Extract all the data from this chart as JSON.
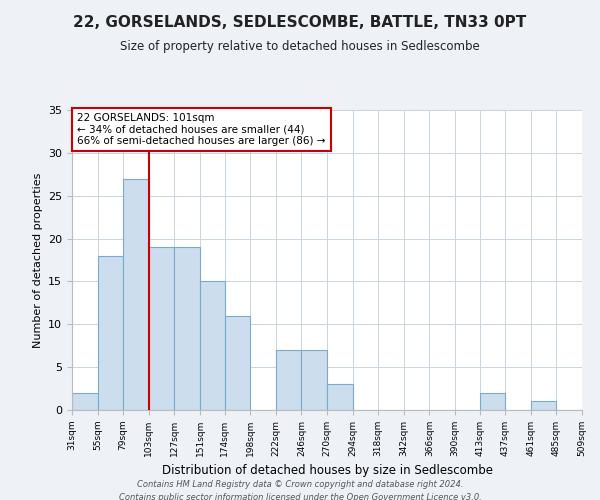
{
  "title": "22, GORSELANDS, SEDLESCOMBE, BATTLE, TN33 0PT",
  "subtitle": "Size of property relative to detached houses in Sedlescombe",
  "xlabel": "Distribution of detached houses by size in Sedlescombe",
  "ylabel": "Number of detached properties",
  "bar_edges": [
    31,
    55,
    79,
    103,
    127,
    151,
    174,
    198,
    222,
    246,
    270,
    294,
    318,
    342,
    366,
    390,
    413,
    437,
    461,
    485,
    509
  ],
  "bar_heights": [
    2,
    18,
    27,
    19,
    19,
    15,
    11,
    0,
    7,
    7,
    3,
    0,
    0,
    0,
    0,
    0,
    2,
    0,
    1,
    0
  ],
  "bar_color": "#ccdded",
  "bar_edgecolor": "#7aaacc",
  "vline_x": 103,
  "vline_color": "#cc0000",
  "annotation_title": "22 GORSELANDS: 101sqm",
  "annotation_line1": "← 34% of detached houses are smaller (44)",
  "annotation_line2": "66% of semi-detached houses are larger (86) →",
  "annotation_box_facecolor": "#ffffff",
  "annotation_box_edgecolor": "#cc0000",
  "ylim": [
    0,
    35
  ],
  "yticks": [
    0,
    5,
    10,
    15,
    20,
    25,
    30,
    35
  ],
  "tick_labels": [
    "31sqm",
    "55sqm",
    "79sqm",
    "103sqm",
    "127sqm",
    "151sqm",
    "174sqm",
    "198sqm",
    "222sqm",
    "246sqm",
    "270sqm",
    "294sqm",
    "318sqm",
    "342sqm",
    "366sqm",
    "390sqm",
    "413sqm",
    "437sqm",
    "461sqm",
    "485sqm",
    "509sqm"
  ],
  "footer_line1": "Contains HM Land Registry data © Crown copyright and database right 2024.",
  "footer_line2": "Contains public sector information licensed under the Open Government Licence v3.0.",
  "bg_color": "#eef2f7",
  "plot_bg_color": "#ffffff",
  "grid_color": "#c8d4e0"
}
